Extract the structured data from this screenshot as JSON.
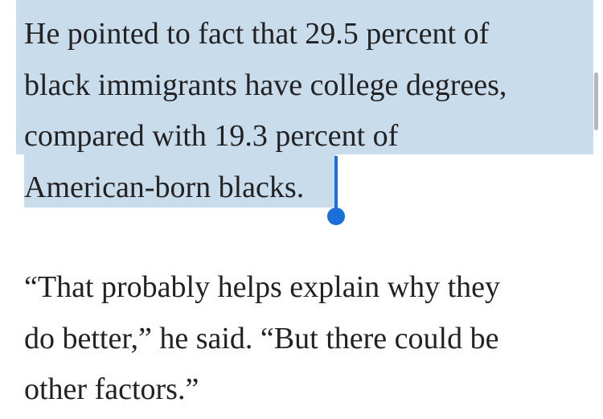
{
  "paragraphs": [
    {
      "lines": [
        "He pointed to fact that 29.5 percent of",
        "black immigrants have college degrees,",
        "compared with 19.3 percent of",
        "American-born blacks."
      ]
    },
    {
      "lines": [
        "“That probably helps explain why they",
        "do better,” he said. “But there could be",
        "other factors.”"
      ]
    }
  ]
}
